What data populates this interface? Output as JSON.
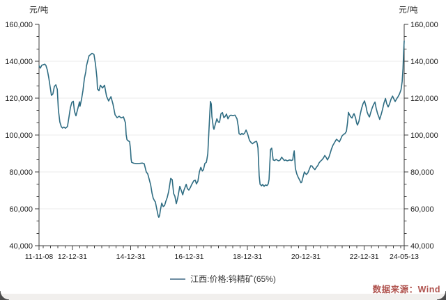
{
  "chart_data": {
    "type": "line",
    "title": "",
    "unit_left": "元/吨",
    "unit_right": "元/吨",
    "legend": {
      "label": "江西:价格:钨精矿(65%)",
      "swatch_color": "#6d8ca2"
    },
    "source": {
      "label": "数据来源：Wind",
      "color": "#b0534e"
    },
    "grid": {
      "horizontal": true,
      "color": "#ebebeb"
    },
    "axis_color": "#3c3c3c",
    "label_color": "#1c1c1c",
    "y_axis": {
      "min": 40000,
      "max": 160000,
      "major_step": 20000,
      "minor_per_interval": 2,
      "labels": [
        "40,000",
        "60,000",
        "80,000",
        "100,000",
        "120,000",
        "140,000",
        "160,000"
      ],
      "sides": "both"
    },
    "x_axis": {
      "start_year": 2011.855,
      "end_year": 2024.37,
      "minor_step_years": 0.25,
      "ticks": [
        {
          "label": "11-11-08",
          "year": 2011.855
        },
        {
          "label": "12-12-31",
          "year": 2013.0
        },
        {
          "label": "14-12-31",
          "year": 2015.0
        },
        {
          "label": "16-12-31",
          "year": 2017.0
        },
        {
          "label": "18-12-31",
          "year": 2019.0
        },
        {
          "label": "20-12-31",
          "year": 2021.0
        },
        {
          "label": "22-12-31",
          "year": 2023.0
        },
        {
          "label": "24-05-13",
          "year": 2024.37
        }
      ]
    },
    "series": [
      {
        "name": "江西:价格:钨精矿(65%)",
        "color": "#2e6c82",
        "points": [
          [
            2011.86,
            137400
          ],
          [
            2011.9,
            136300
          ],
          [
            2011.95,
            137900
          ],
          [
            2012.0,
            138100
          ],
          [
            2012.05,
            138400
          ],
          [
            2012.09,
            137800
          ],
          [
            2012.14,
            135300
          ],
          [
            2012.19,
            131000
          ],
          [
            2012.28,
            121500
          ],
          [
            2012.33,
            122300
          ],
          [
            2012.38,
            126300
          ],
          [
            2012.43,
            127200
          ],
          [
            2012.48,
            124800
          ],
          [
            2012.52,
            113500
          ],
          [
            2012.57,
            107000
          ],
          [
            2012.62,
            104500
          ],
          [
            2012.66,
            103800
          ],
          [
            2012.71,
            104300
          ],
          [
            2012.76,
            103700
          ],
          [
            2012.83,
            104600
          ],
          [
            2012.88,
            109500
          ],
          [
            2012.93,
            114800
          ],
          [
            2012.98,
            117700
          ],
          [
            2013.03,
            118300
          ],
          [
            2013.07,
            112800
          ],
          [
            2013.12,
            110400
          ],
          [
            2013.17,
            113500
          ],
          [
            2013.22,
            116600
          ],
          [
            2013.24,
            118000
          ],
          [
            2013.26,
            115600
          ],
          [
            2013.31,
            119200
          ],
          [
            2013.36,
            124000
          ],
          [
            2013.41,
            130600
          ],
          [
            2013.46,
            134500
          ],
          [
            2013.48,
            137400
          ],
          [
            2013.53,
            140500
          ],
          [
            2013.57,
            143000
          ],
          [
            2013.62,
            143600
          ],
          [
            2013.67,
            144300
          ],
          [
            2013.72,
            143900
          ],
          [
            2013.74,
            143600
          ],
          [
            2013.79,
            138500
          ],
          [
            2013.84,
            131000
          ],
          [
            2013.86,
            125000
          ],
          [
            2013.91,
            124000
          ],
          [
            2013.96,
            127000
          ],
          [
            2014.03,
            125500
          ],
          [
            2014.1,
            127000
          ],
          [
            2014.17,
            121000
          ],
          [
            2014.24,
            118500
          ],
          [
            2014.32,
            120800
          ],
          [
            2014.39,
            116800
          ],
          [
            2014.46,
            111000
          ],
          [
            2014.53,
            109400
          ],
          [
            2014.6,
            110200
          ],
          [
            2014.67,
            109300
          ],
          [
            2014.75,
            109800
          ],
          [
            2014.82,
            106500
          ],
          [
            2014.84,
            100300
          ],
          [
            2014.87,
            97500
          ],
          [
            2014.92,
            96800
          ],
          [
            2014.96,
            96400
          ],
          [
            2014.99,
            92000
          ],
          [
            2015.01,
            87000
          ],
          [
            2015.03,
            85200
          ],
          [
            2015.1,
            84700
          ],
          [
            2015.2,
            84500
          ],
          [
            2015.3,
            84600
          ],
          [
            2015.39,
            84800
          ],
          [
            2015.46,
            84500
          ],
          [
            2015.53,
            80000
          ],
          [
            2015.58,
            78900
          ],
          [
            2015.61,
            77300
          ],
          [
            2015.68,
            73000
          ],
          [
            2015.73,
            68400
          ],
          [
            2015.77,
            65700
          ],
          [
            2015.82,
            64200
          ],
          [
            2015.84,
            63800
          ],
          [
            2015.89,
            60000
          ],
          [
            2015.94,
            56200
          ],
          [
            2015.96,
            55400
          ],
          [
            2015.99,
            56500
          ],
          [
            2016.01,
            59000
          ],
          [
            2016.06,
            63100
          ],
          [
            2016.11,
            61200
          ],
          [
            2016.16,
            61800
          ],
          [
            2016.2,
            64000
          ],
          [
            2016.25,
            66200
          ],
          [
            2016.3,
            69500
          ],
          [
            2016.37,
            76500
          ],
          [
            2016.42,
            75800
          ],
          [
            2016.47,
            68200
          ],
          [
            2016.51,
            66900
          ],
          [
            2016.56,
            62800
          ],
          [
            2016.61,
            66000
          ],
          [
            2016.68,
            72200
          ],
          [
            2016.73,
            70000
          ],
          [
            2016.78,
            67600
          ],
          [
            2016.82,
            70000
          ],
          [
            2016.9,
            73300
          ],
          [
            2016.94,
            71000
          ],
          [
            2016.99,
            70200
          ],
          [
            2017.04,
            71500
          ],
          [
            2017.09,
            73300
          ],
          [
            2017.16,
            75200
          ],
          [
            2017.21,
            75500
          ],
          [
            2017.25,
            73500
          ],
          [
            2017.3,
            75000
          ],
          [
            2017.35,
            80000
          ],
          [
            2017.4,
            82500
          ],
          [
            2017.45,
            80500
          ],
          [
            2017.49,
            81200
          ],
          [
            2017.54,
            84600
          ],
          [
            2017.59,
            85200
          ],
          [
            2017.61,
            87000
          ],
          [
            2017.64,
            90000
          ],
          [
            2017.68,
            103000
          ],
          [
            2017.71,
            112000
          ],
          [
            2017.73,
            118200
          ],
          [
            2017.76,
            116800
          ],
          [
            2017.78,
            110000
          ],
          [
            2017.83,
            104000
          ],
          [
            2017.85,
            103100
          ],
          [
            2017.9,
            106000
          ],
          [
            2017.95,
            108800
          ],
          [
            2018.0,
            107000
          ],
          [
            2018.04,
            106900
          ],
          [
            2018.09,
            111500
          ],
          [
            2018.14,
            112200
          ],
          [
            2018.19,
            109400
          ],
          [
            2018.23,
            110000
          ],
          [
            2018.28,
            111400
          ],
          [
            2018.33,
            108800
          ],
          [
            2018.38,
            110300
          ],
          [
            2018.43,
            110800
          ],
          [
            2018.5,
            110500
          ],
          [
            2018.57,
            110800
          ],
          [
            2018.64,
            108800
          ],
          [
            2018.69,
            104000
          ],
          [
            2018.71,
            100800
          ],
          [
            2018.76,
            100200
          ],
          [
            2018.81,
            100900
          ],
          [
            2018.85,
            100300
          ],
          [
            2018.9,
            101000
          ],
          [
            2018.95,
            102700
          ],
          [
            2019.0,
            100800
          ],
          [
            2019.05,
            98000
          ],
          [
            2019.07,
            97000
          ],
          [
            2019.12,
            96000
          ],
          [
            2019.17,
            95300
          ],
          [
            2019.21,
            95800
          ],
          [
            2019.26,
            96300
          ],
          [
            2019.31,
            96600
          ],
          [
            2019.33,
            95500
          ],
          [
            2019.36,
            93000
          ],
          [
            2019.38,
            85000
          ],
          [
            2019.4,
            78000
          ],
          [
            2019.43,
            73300
          ],
          [
            2019.48,
            72500
          ],
          [
            2019.52,
            73200
          ],
          [
            2019.57,
            72200
          ],
          [
            2019.62,
            73000
          ],
          [
            2019.67,
            72600
          ],
          [
            2019.71,
            73500
          ],
          [
            2019.74,
            76000
          ],
          [
            2019.76,
            83000
          ],
          [
            2019.79,
            92100
          ],
          [
            2019.83,
            92900
          ],
          [
            2019.86,
            89000
          ],
          [
            2019.88,
            86500
          ],
          [
            2019.93,
            86200
          ],
          [
            2019.98,
            86800
          ],
          [
            2020.03,
            86300
          ],
          [
            2020.07,
            86000
          ],
          [
            2020.12,
            86500
          ],
          [
            2020.17,
            88000
          ],
          [
            2020.22,
            87000
          ],
          [
            2020.26,
            86200
          ],
          [
            2020.31,
            86500
          ],
          [
            2020.36,
            86000
          ],
          [
            2020.41,
            86300
          ],
          [
            2020.45,
            86500
          ],
          [
            2020.5,
            86200
          ],
          [
            2020.55,
            86500
          ],
          [
            2020.57,
            89000
          ],
          [
            2020.6,
            91400
          ],
          [
            2020.62,
            87000
          ],
          [
            2020.64,
            82000
          ],
          [
            2020.69,
            78900
          ],
          [
            2020.74,
            77000
          ],
          [
            2020.79,
            75500
          ],
          [
            2020.83,
            74100
          ],
          [
            2020.86,
            74500
          ],
          [
            2020.9,
            77000
          ],
          [
            2020.95,
            80000
          ],
          [
            2020.98,
            79200
          ],
          [
            2021.02,
            78600
          ],
          [
            2021.07,
            79500
          ],
          [
            2021.12,
            81500
          ],
          [
            2021.17,
            83400
          ],
          [
            2021.21,
            83200
          ],
          [
            2021.26,
            82000
          ],
          [
            2021.31,
            81300
          ],
          [
            2021.36,
            82500
          ],
          [
            2021.41,
            83500
          ],
          [
            2021.45,
            84800
          ],
          [
            2021.5,
            85800
          ],
          [
            2021.55,
            86500
          ],
          [
            2021.6,
            87500
          ],
          [
            2021.65,
            88900
          ],
          [
            2021.69,
            88000
          ],
          [
            2021.74,
            86500
          ],
          [
            2021.79,
            88000
          ],
          [
            2021.84,
            90500
          ],
          [
            2021.88,
            92500
          ],
          [
            2021.93,
            94500
          ],
          [
            2021.98,
            95800
          ],
          [
            2022.03,
            97200
          ],
          [
            2022.05,
            97700
          ],
          [
            2022.1,
            97000
          ],
          [
            2022.15,
            96300
          ],
          [
            2022.2,
            98000
          ],
          [
            2022.24,
            99500
          ],
          [
            2022.29,
            100300
          ],
          [
            2022.34,
            100800
          ],
          [
            2022.39,
            102000
          ],
          [
            2022.43,
            107000
          ],
          [
            2022.46,
            112300
          ],
          [
            2022.48,
            111500
          ],
          [
            2022.53,
            110000
          ],
          [
            2022.58,
            109200
          ],
          [
            2022.63,
            111000
          ],
          [
            2022.65,
            111600
          ],
          [
            2022.7,
            109500
          ],
          [
            2022.74,
            106500
          ],
          [
            2022.77,
            105400
          ],
          [
            2022.82,
            107500
          ],
          [
            2022.86,
            111000
          ],
          [
            2022.91,
            114500
          ],
          [
            2022.96,
            117000
          ],
          [
            2023.01,
            118500
          ],
          [
            2023.06,
            115500
          ],
          [
            2023.1,
            112500
          ],
          [
            2023.15,
            110500
          ],
          [
            2023.18,
            109800
          ],
          [
            2023.22,
            112000
          ],
          [
            2023.27,
            114500
          ],
          [
            2023.32,
            116500
          ],
          [
            2023.37,
            117900
          ],
          [
            2023.41,
            114500
          ],
          [
            2023.46,
            111500
          ],
          [
            2023.51,
            109500
          ],
          [
            2023.53,
            108500
          ],
          [
            2023.58,
            111000
          ],
          [
            2023.63,
            114000
          ],
          [
            2023.68,
            117500
          ],
          [
            2023.73,
            119800
          ],
          [
            2023.77,
            117000
          ],
          [
            2023.82,
            115200
          ],
          [
            2023.87,
            117000
          ],
          [
            2023.92,
            119500
          ],
          [
            2023.97,
            121100
          ],
          [
            2024.01,
            119800
          ],
          [
            2024.06,
            118200
          ],
          [
            2024.11,
            119600
          ],
          [
            2024.16,
            120800
          ],
          [
            2024.21,
            122300
          ],
          [
            2024.26,
            124500
          ],
          [
            2024.28,
            126500
          ],
          [
            2024.3,
            129000
          ],
          [
            2024.33,
            136000
          ],
          [
            2024.35,
            145000
          ],
          [
            2024.37,
            151000
          ]
        ]
      }
    ]
  }
}
